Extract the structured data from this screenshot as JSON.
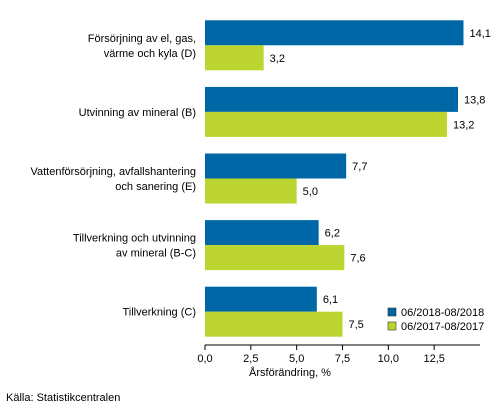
{
  "chart_data": {
    "type": "bar",
    "orientation": "horizontal",
    "categories": [
      [
        "Försörjning av el, gas,",
        "värme och kyla (D)"
      ],
      [
        "Utvinning av mineral (B)"
      ],
      [
        "Vattenförsörjning, avfallshantering",
        "och sanering (E)"
      ],
      [
        "Tillverkning och utvinning",
        "av mineral (B-C)"
      ],
      [
        "Tillverkning (C)"
      ]
    ],
    "series": [
      {
        "name": "06/2018-08/2018",
        "color": "#0067a6",
        "values": [
          14.1,
          13.8,
          7.7,
          6.2,
          6.1
        ],
        "labels": [
          "14,1",
          "13,8",
          "7,7",
          "6,2",
          "6,1"
        ]
      },
      {
        "name": "06/2017-08/2017",
        "color": "#bcd531",
        "values": [
          3.2,
          13.2,
          5.0,
          7.6,
          7.5
        ],
        "labels": [
          "3,2",
          "13,2",
          "5,0",
          "7,6",
          "7,5"
        ]
      }
    ],
    "xlim": [
      0,
      15.0
    ],
    "xticks": [
      0,
      2.5,
      5.0,
      7.5,
      10.0,
      12.5
    ],
    "xtick_labels": [
      "0,0",
      "2,5",
      "5,0",
      "7,5",
      "10,0",
      "12,5"
    ],
    "xlabel": "Årsförändring, %",
    "legend_position": "bottom-right",
    "grid": false
  },
  "source": "Källa: Statistikcentralen"
}
